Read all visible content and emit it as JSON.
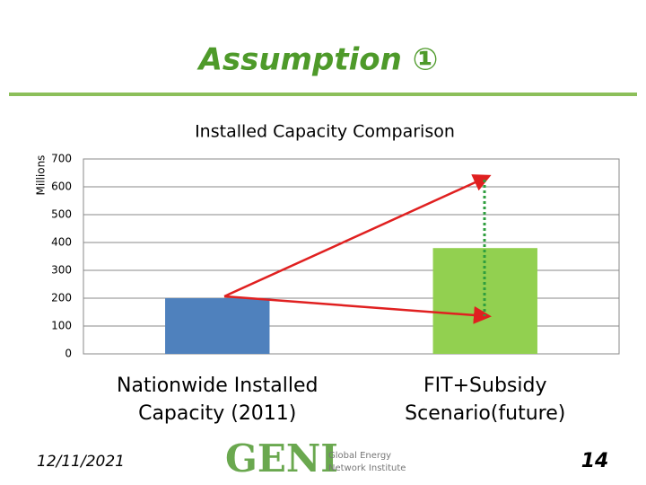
{
  "slide": {
    "title": "Assumption ①"
  },
  "chart_data": {
    "type": "bar",
    "title": "Installed Capacity Comparison",
    "y_label": "Millions",
    "categories": [
      "Nationwide Installed Capacity (2011)",
      "FIT+Subsidy Scenario(future)"
    ],
    "values": [
      200,
      380
    ],
    "colors": [
      "#4f81bd",
      "#92d050"
    ],
    "ylim": [
      0,
      700
    ],
    "yticks": [
      0,
      100,
      200,
      300,
      400,
      500,
      600,
      700
    ],
    "grid": true
  },
  "footer": {
    "date": "12/11/2021",
    "logo": "GENI",
    "logo_subtitle": [
      "Global Energy",
      "Network Institute"
    ],
    "page": "14"
  }
}
